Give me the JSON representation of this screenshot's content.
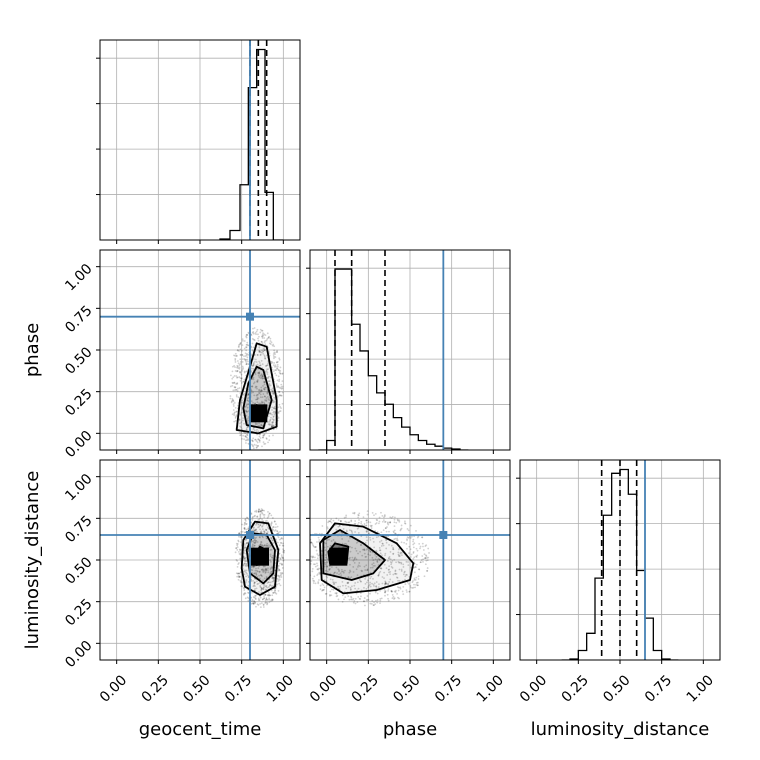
{
  "colors": {
    "truth": "#4682b4",
    "hist": "#000000",
    "grid": "#b0b0b0",
    "quantile": "#000000",
    "contour": "#000000",
    "samples": "#000000"
  },
  "chart_data": {
    "type": "corner",
    "parameters": [
      "geocent_time",
      "phase",
      "luminosity_distance"
    ],
    "axis_range": [
      -0.1,
      1.1
    ],
    "ticks": [
      0.0,
      0.25,
      0.5,
      0.75,
      1.0
    ],
    "tick_labels": [
      "0.00",
      "0.25",
      "0.50",
      "0.75",
      "1.00"
    ],
    "grid": true,
    "truths": {
      "geocent_time": 0.8,
      "phase": 0.7,
      "luminosity_distance": 0.65
    },
    "histograms": [
      {
        "parameter": "geocent_time",
        "bin_edges": [
          0.62,
          0.68,
          0.74,
          0.79,
          0.84,
          0.89,
          0.94,
          1.0
        ],
        "counts": [
          0.005,
          0.05,
          0.29,
          0.8,
          1.0,
          0.25,
          0.0
        ],
        "quantiles": [
          0.8,
          0.85,
          0.9
        ]
      },
      {
        "parameter": "phase",
        "bin_edges": [
          -0.05,
          0.0,
          0.05,
          0.1,
          0.15,
          0.2,
          0.25,
          0.3,
          0.35,
          0.4,
          0.45,
          0.5,
          0.55,
          0.6,
          0.65,
          0.7,
          0.75,
          0.8,
          0.85
        ],
        "counts": [
          0.0,
          0.05,
          0.95,
          0.95,
          0.66,
          0.52,
          0.39,
          0.3,
          0.24,
          0.17,
          0.12,
          0.08,
          0.05,
          0.03,
          0.02,
          0.01,
          0.005,
          0.0
        ],
        "quantiles": [
          0.05,
          0.15,
          0.35
        ]
      },
      {
        "parameter": "luminosity_distance",
        "bin_edges": [
          0.15,
          0.2,
          0.25,
          0.3,
          0.35,
          0.4,
          0.45,
          0.5,
          0.55,
          0.6,
          0.65,
          0.7,
          0.75,
          0.8,
          0.85
        ],
        "counts": [
          0.0,
          0.005,
          0.05,
          0.14,
          0.43,
          0.76,
          0.98,
          1.0,
          0.87,
          0.47,
          0.22,
          0.05,
          0.005,
          0.0
        ],
        "quantiles": [
          0.39,
          0.5,
          0.6
        ]
      }
    ],
    "pairs": [
      {
        "x": "geocent_time",
        "y": "phase",
        "center": [
          0.85,
          0.12
        ],
        "contour_levels": [
          [
            [
              0.84,
              0.08
            ],
            [
              0.87,
              0.1
            ],
            [
              0.87,
              0.15
            ],
            [
              0.84,
              0.17
            ],
            [
              0.82,
              0.13
            ]
          ],
          [
            [
              0.78,
              0.05
            ],
            [
              0.88,
              0.03
            ],
            [
              0.93,
              0.2
            ],
            [
              0.88,
              0.38
            ],
            [
              0.84,
              0.4
            ],
            [
              0.79,
              0.3
            ],
            [
              0.76,
              0.15
            ]
          ],
          [
            [
              0.72,
              0.02
            ],
            [
              0.85,
              0.0
            ],
            [
              0.96,
              0.04
            ],
            [
              0.96,
              0.2
            ],
            [
              0.9,
              0.52
            ],
            [
              0.84,
              0.54
            ],
            [
              0.8,
              0.4
            ],
            [
              0.74,
              0.2
            ]
          ]
        ]
      },
      {
        "x": "geocent_time",
        "y": "luminosity_distance",
        "center": [
          0.86,
          0.52
        ],
        "contour_levels": [
          [
            [
              0.84,
              0.47
            ],
            [
              0.9,
              0.48
            ],
            [
              0.9,
              0.56
            ],
            [
              0.86,
              0.58
            ],
            [
              0.83,
              0.54
            ]
          ],
          [
            [
              0.8,
              0.42
            ],
            [
              0.88,
              0.36
            ],
            [
              0.94,
              0.42
            ],
            [
              0.95,
              0.56
            ],
            [
              0.9,
              0.65
            ],
            [
              0.82,
              0.66
            ],
            [
              0.78,
              0.56
            ]
          ],
          [
            [
              0.77,
              0.34
            ],
            [
              0.86,
              0.29
            ],
            [
              0.95,
              0.34
            ],
            [
              0.97,
              0.56
            ],
            [
              0.91,
              0.72
            ],
            [
              0.83,
              0.73
            ],
            [
              0.76,
              0.62
            ],
            [
              0.75,
              0.45
            ]
          ]
        ]
      },
      {
        "x": "phase",
        "y": "luminosity_distance",
        "center": [
          0.07,
          0.52
        ],
        "contour_levels": [
          [
            [
              0.02,
              0.48
            ],
            [
              0.12,
              0.48
            ],
            [
              0.13,
              0.58
            ],
            [
              0.05,
              0.6
            ],
            [
              0.01,
              0.55
            ]
          ],
          [
            [
              -0.02,
              0.42
            ],
            [
              0.15,
              0.38
            ],
            [
              0.28,
              0.42
            ],
            [
              0.35,
              0.5
            ],
            [
              0.22,
              0.6
            ],
            [
              0.08,
              0.68
            ],
            [
              -0.02,
              0.62
            ]
          ],
          [
            [
              -0.03,
              0.38
            ],
            [
              0.1,
              0.3
            ],
            [
              0.3,
              0.32
            ],
            [
              0.5,
              0.38
            ],
            [
              0.52,
              0.48
            ],
            [
              0.42,
              0.6
            ],
            [
              0.22,
              0.7
            ],
            [
              0.05,
              0.72
            ],
            [
              -0.04,
              0.6
            ]
          ]
        ]
      }
    ]
  }
}
